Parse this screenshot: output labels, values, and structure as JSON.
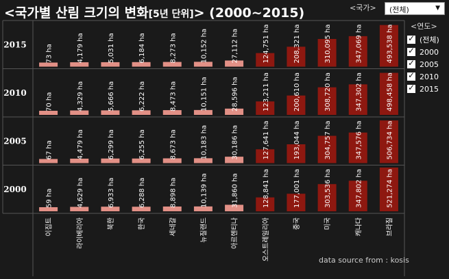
{
  "title": {
    "main": "<국가별 산림 크기의 변화",
    "sub": "[5년 단위]",
    "tail": "> (2000~2015)"
  },
  "filter": {
    "label": "<국가>",
    "selected": "(전체)"
  },
  "legend": {
    "title": "<연도>",
    "items": [
      "(전체)",
      "2000",
      "2005",
      "2010",
      "2015"
    ]
  },
  "source": "data source from : kosis",
  "colors": {
    "light": "#e29086",
    "dark": "#8e1810",
    "background": "#1a1a1a",
    "grid": "#555555"
  },
  "chart_data": {
    "type": "bar",
    "unit": "ha",
    "categories": [
      "이집트",
      "라이베리아",
      "북한",
      "한국",
      "세네갈",
      "뉴질랜드",
      "아르헨티나",
      "오스트레일리아",
      "중국",
      "미국",
      "캐나다",
      "브라질"
    ],
    "years": [
      "2015",
      "2010",
      "2005",
      "2000"
    ],
    "series": [
      {
        "name": "2015",
        "values": [
          73,
          4179,
          5031,
          6184,
          8273,
          10152,
          27112,
          124751,
          208321,
          310095,
          347069,
          493538
        ]
      },
      {
        "name": "2010",
        "values": [
          70,
          4329,
          5666,
          6222,
          8473,
          10151,
          28596,
          123211,
          200610,
          308720,
          347302,
          498458
        ]
      },
      {
        "name": "2005",
        "values": [
          67,
          4479,
          6299,
          6255,
          8673,
          10183,
          30186,
          127641,
          193044,
          304757,
          347576,
          506734
        ]
      },
      {
        "name": "2000",
        "values": [
          59,
          4629,
          6933,
          6288,
          8898,
          10139,
          31860,
          128841,
          177001,
          303536,
          347802,
          521274
        ]
      }
    ],
    "value_labels": [
      [
        "73 ha",
        "4,179 ha",
        "5,031 ha",
        "6,184 ha",
        "8,273 ha",
        "10,152 ha",
        "27,112 ha",
        "124,751 ha",
        "208,321 ha",
        "310,095 ha",
        "347,069 ha",
        "493,538 ha"
      ],
      [
        "70 ha",
        "4,329 ha",
        "5,666 ha",
        "6,222 ha",
        "8,473 ha",
        "10,151 ha",
        "28,596 ha",
        "123,211 ha",
        "200,610 ha",
        "308,720 ha",
        "347,302 ha",
        "498,458 ha"
      ],
      [
        "67 ha",
        "4,479 ha",
        "6,299 ha",
        "6,255 ha",
        "8,673 ha",
        "10,183 ha",
        "30,186 ha",
        "127,641 ha",
        "193,044 ha",
        "304,757 ha",
        "347,576 ha",
        "506,734 ha"
      ],
      [
        "59 ha",
        "4,629 ha",
        "6,933 ha",
        "6,288 ha",
        "8,898 ha",
        "10,139 ha",
        "31,860 ha",
        "128,841 ha",
        "177,001 ha",
        "303,536 ha",
        "347,802 ha",
        "521,274 ha"
      ]
    ]
  }
}
